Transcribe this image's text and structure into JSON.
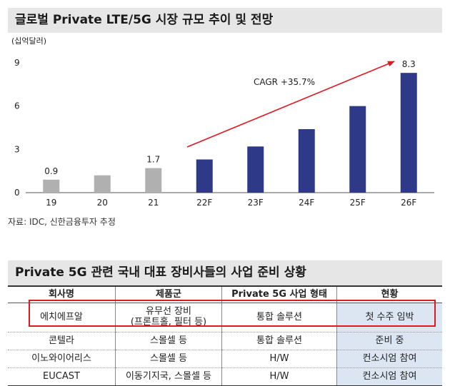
{
  "chart_section": {
    "title": "글로벌 Private LTE/5G 시장 규모 추이 및 전망",
    "source": "자료: IDC, 신한금융투자 추정"
  },
  "chart_data": {
    "type": "bar",
    "title": "",
    "unit_label": "(십억달러)",
    "categories": [
      "19",
      "20",
      "21",
      "22F",
      "23F",
      "24F",
      "25F",
      "26F"
    ],
    "values": [
      0.9,
      1.2,
      1.7,
      2.3,
      3.2,
      4.4,
      6.0,
      8.3
    ],
    "bar_colors": [
      "#b0b0b0",
      "#b0b0b0",
      "#b0b0b0",
      "#2e3a87",
      "#2e3a87",
      "#2e3a87",
      "#2e3a87",
      "#2e3a87"
    ],
    "data_labels": [
      {
        "index": 0,
        "text": "0.9"
      },
      {
        "index": 2,
        "text": "1.7"
      },
      {
        "index": 7,
        "text": "8.3"
      }
    ],
    "ylim": [
      0,
      9
    ],
    "yticks": [
      "0",
      "3",
      "6",
      "9"
    ],
    "grid": false,
    "annotation": "CAGR +35.7%",
    "arrow_color": "#e0191f"
  },
  "table_section": {
    "title": "Private 5G 관련 국내 대표 장비사들의 사업 준비 상황",
    "headers": [
      "회사명",
      "제품군",
      "Private 5G 사업 형태",
      "현황"
    ],
    "rows": [
      {
        "company": "에치에프알",
        "product_line1": "유무선 장비",
        "product_line2": "(프론트홀, 필터 등)",
        "type": "통합 솔루션",
        "status": "첫 수주 임박"
      },
      {
        "company": "콘텔라",
        "product_line1": "스몰셀 등",
        "product_line2": "",
        "type": "통합 솔루션",
        "status": "준비 중"
      },
      {
        "company": "이노와이어리스",
        "product_line1": "스몰셀 등",
        "product_line2": "",
        "type": "H/W",
        "status": "컨소시엄 참여"
      },
      {
        "company": "EUCAST",
        "product_line1": "이동기지국, 스몰셀 등",
        "product_line2": "",
        "type": "H/W",
        "status": "컨소시엄 참여"
      }
    ],
    "highlight_color": "#e0191f",
    "status_bg": "#dce6f2"
  }
}
